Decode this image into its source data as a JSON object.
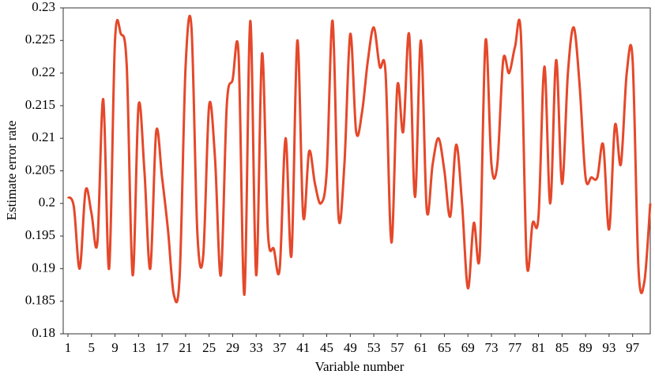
{
  "chart_data": {
    "type": "line",
    "xlabel": "Variable number",
    "ylabel": "Estimate error rate",
    "x": [
      1,
      2,
      3,
      4,
      5,
      6,
      7,
      8,
      9,
      10,
      11,
      12,
      13,
      14,
      15,
      16,
      17,
      18,
      19,
      20,
      21,
      22,
      23,
      24,
      25,
      26,
      27,
      28,
      29,
      30,
      31,
      32,
      33,
      34,
      35,
      36,
      37,
      38,
      39,
      40,
      41,
      42,
      43,
      44,
      45,
      46,
      47,
      48,
      49,
      50,
      51,
      52,
      53,
      54,
      55,
      56,
      57,
      58,
      59,
      60,
      61,
      62,
      63,
      64,
      65,
      66,
      67,
      68,
      69,
      70,
      71,
      72,
      73,
      74,
      75,
      76,
      77,
      78,
      79,
      80,
      81,
      82,
      83,
      84,
      85,
      86,
      87,
      88,
      89,
      90,
      91,
      92,
      93,
      94,
      95,
      96,
      97,
      98,
      99,
      100
    ],
    "series": [
      {
        "name": "Estimate error rate",
        "color": "#e5482a",
        "values": [
          0.201,
          0.1995,
          0.19,
          0.202,
          0.1985,
          0.194,
          0.216,
          0.19,
          0.225,
          0.226,
          0.221,
          0.189,
          0.215,
          0.205,
          0.19,
          0.211,
          0.204,
          0.196,
          0.186,
          0.189,
          0.221,
          0.227,
          0.1955,
          0.192,
          0.215,
          0.207,
          0.189,
          0.215,
          0.219,
          0.223,
          0.186,
          0.228,
          0.189,
          0.223,
          0.1955,
          0.193,
          0.19,
          0.21,
          0.192,
          0.225,
          0.198,
          0.208,
          0.203,
          0.2,
          0.205,
          0.228,
          0.198,
          0.206,
          0.226,
          0.211,
          0.214,
          0.222,
          0.227,
          0.221,
          0.22,
          0.194,
          0.218,
          0.211,
          0.226,
          0.201,
          0.225,
          0.199,
          0.206,
          0.21,
          0.205,
          0.198,
          0.209,
          0.2,
          0.187,
          0.197,
          0.192,
          0.225,
          0.206,
          0.206,
          0.222,
          0.22,
          0.224,
          0.226,
          0.191,
          0.197,
          0.198,
          0.221,
          0.2,
          0.222,
          0.203,
          0.22,
          0.227,
          0.218,
          0.204,
          0.204,
          0.204,
          0.209,
          0.196,
          0.212,
          0.206,
          0.22,
          0.222,
          0.19,
          0.188,
          0.2
        ]
      }
    ],
    "xlim": [
      1,
      100
    ],
    "xticks": [
      1,
      5,
      9,
      13,
      17,
      21,
      25,
      29,
      33,
      37,
      41,
      45,
      49,
      53,
      57,
      61,
      65,
      69,
      73,
      77,
      81,
      85,
      89,
      93,
      97
    ],
    "ylim": [
      0.18,
      0.23
    ],
    "yticks": [
      0.18,
      0.185,
      0.19,
      0.195,
      0.2,
      0.205,
      0.21,
      0.215,
      0.22,
      0.225,
      0.23
    ],
    "grid": false
  }
}
